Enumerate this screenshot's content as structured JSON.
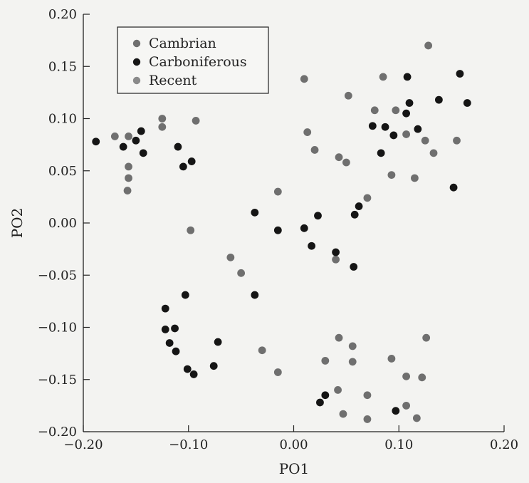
{
  "chart_data": {
    "type": "scatter",
    "xlabel": "PO1",
    "ylabel": "PO2",
    "xlim": [
      -0.2,
      0.2
    ],
    "ylim": [
      -0.2,
      0.2
    ],
    "xticks": [
      "-0.20",
      "-0.10",
      "0.00",
      "0.10",
      "0.20"
    ],
    "yticks": [
      "0.20",
      "0.15",
      "0.10",
      "0.05",
      "0.00",
      "-0.05",
      "-0.10",
      "-0.15",
      "-0.20"
    ],
    "legend_position": "top-left",
    "grid": false,
    "series": [
      {
        "name": "Cambrian",
        "color": "#6f6f6f",
        "points": [
          [
            -0.17,
            0.083
          ],
          [
            -0.157,
            0.083
          ],
          [
            -0.157,
            0.054
          ],
          [
            -0.157,
            0.043
          ],
          [
            -0.158,
            0.031
          ],
          [
            -0.125,
            0.1
          ],
          [
            -0.125,
            0.092
          ],
          [
            -0.093,
            0.098
          ],
          [
            -0.098,
            -0.007
          ],
          [
            -0.06,
            -0.033
          ],
          [
            -0.05,
            -0.048
          ],
          [
            -0.03,
            -0.122
          ],
          [
            -0.015,
            -0.143
          ],
          [
            -0.015,
            0.03
          ],
          [
            0.01,
            0.138
          ],
          [
            0.013,
            0.087
          ],
          [
            0.02,
            0.07
          ],
          [
            0.04,
            -0.035
          ],
          [
            0.043,
            0.063
          ],
          [
            0.05,
            0.058
          ],
          [
            0.052,
            0.122
          ],
          [
            0.07,
            0.024
          ],
          [
            0.07,
            -0.165
          ],
          [
            0.07,
            -0.188
          ],
          [
            0.043,
            -0.11
          ],
          [
            0.042,
            -0.16
          ],
          [
            0.047,
            -0.183
          ],
          [
            0.03,
            -0.132
          ],
          [
            0.056,
            -0.118
          ],
          [
            0.056,
            -0.133
          ],
          [
            0.077,
            0.108
          ],
          [
            0.085,
            0.14
          ],
          [
            0.093,
            0.046
          ],
          [
            0.097,
            0.108
          ],
          [
            0.107,
            0.085
          ],
          [
            0.115,
            0.043
          ],
          [
            0.128,
            0.17
          ],
          [
            0.133,
            0.067
          ],
          [
            0.155,
            0.079
          ],
          [
            0.093,
            -0.13
          ],
          [
            0.107,
            -0.147
          ],
          [
            0.107,
            -0.175
          ],
          [
            0.117,
            -0.187
          ],
          [
            0.122,
            -0.148
          ],
          [
            0.126,
            -0.11
          ],
          [
            0.125,
            0.079
          ]
        ]
      },
      {
        "name": "Carboniferous",
        "color": "#151515",
        "points": [
          [
            -0.188,
            0.078
          ],
          [
            -0.162,
            0.073
          ],
          [
            -0.15,
            0.079
          ],
          [
            -0.145,
            0.088
          ],
          [
            -0.143,
            0.067
          ],
          [
            -0.11,
            0.073
          ],
          [
            -0.105,
            0.054
          ],
          [
            -0.097,
            0.059
          ],
          [
            -0.122,
            -0.082
          ],
          [
            -0.122,
            -0.102
          ],
          [
            -0.118,
            -0.115
          ],
          [
            -0.113,
            -0.101
          ],
          [
            -0.112,
            -0.123
          ],
          [
            -0.103,
            -0.069
          ],
          [
            -0.101,
            -0.14
          ],
          [
            -0.095,
            -0.145
          ],
          [
            -0.072,
            -0.114
          ],
          [
            -0.076,
            -0.137
          ],
          [
            -0.037,
            -0.069
          ],
          [
            -0.037,
            0.01
          ],
          [
            -0.015,
            -0.007
          ],
          [
            0.01,
            -0.005
          ],
          [
            0.017,
            -0.022
          ],
          [
            0.023,
            0.007
          ],
          [
            0.025,
            -0.172
          ],
          [
            0.03,
            -0.165
          ],
          [
            0.04,
            -0.028
          ],
          [
            0.057,
            -0.042
          ],
          [
            0.058,
            0.008
          ],
          [
            0.062,
            0.016
          ],
          [
            0.075,
            0.093
          ],
          [
            0.083,
            0.067
          ],
          [
            0.087,
            0.092
          ],
          [
            0.095,
            0.084
          ],
          [
            0.097,
            -0.18
          ],
          [
            0.107,
            0.105
          ],
          [
            0.108,
            0.14
          ],
          [
            0.11,
            0.115
          ],
          [
            0.118,
            0.09
          ],
          [
            0.138,
            0.118
          ],
          [
            0.152,
            0.034
          ],
          [
            0.158,
            0.143
          ],
          [
            0.165,
            0.115
          ]
        ]
      },
      {
        "name": "Recent",
        "color": "#8a8a8a",
        "points": []
      }
    ]
  }
}
